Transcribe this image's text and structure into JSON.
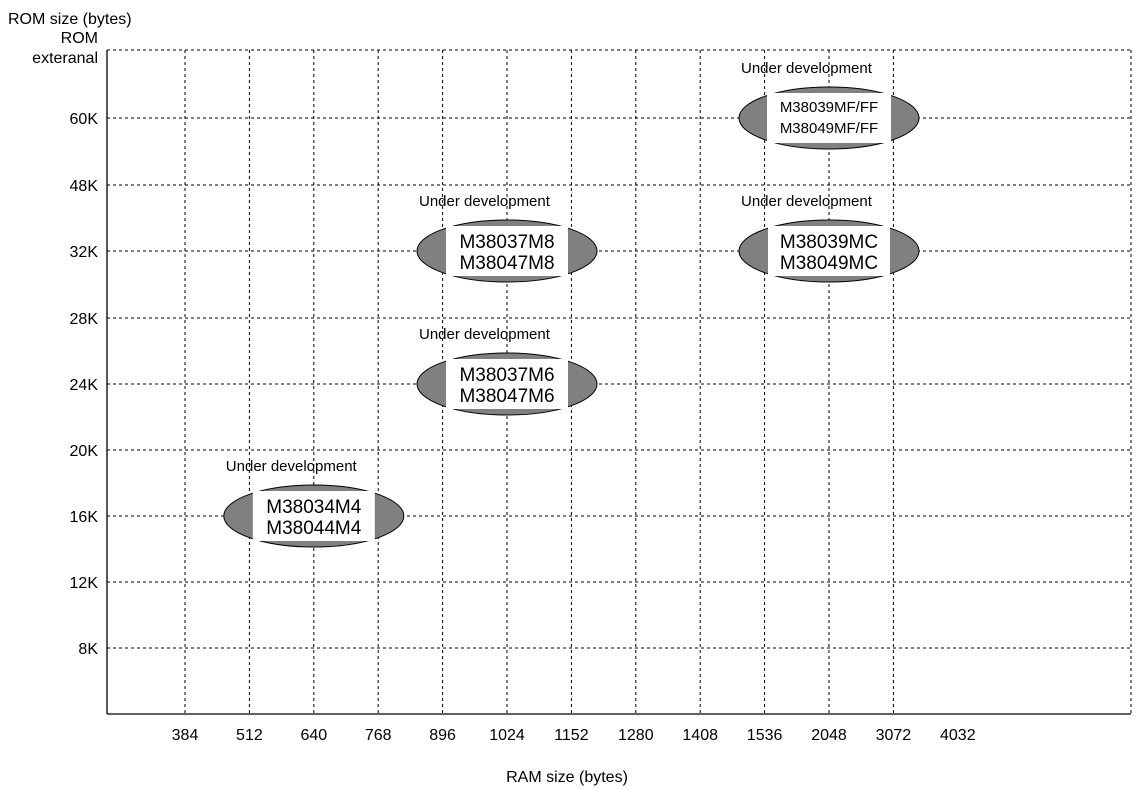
{
  "chart_data": {
    "type": "scatter",
    "title": "",
    "xlabel": "RAM size (bytes)",
    "ylabel": "ROM size (bytes)",
    "x_ticks": [
      "384",
      "512",
      "640",
      "768",
      "896",
      "1024",
      "1152",
      "1280",
      "1408",
      "1536",
      "2048",
      "3072",
      "4032"
    ],
    "y_ticks": [
      "8K",
      "12K",
      "16K",
      "20K",
      "24K",
      "28K",
      "32K",
      "48K",
      "60K",
      "ROM\nexteranal"
    ],
    "y_top_label": [
      "ROM",
      "exteranal"
    ],
    "grid": true,
    "points": [
      {
        "x": "640",
        "y": "16K",
        "lines": [
          "M38034M4",
          "M38044M4"
        ],
        "annotation": "Under development"
      },
      {
        "x": "1024",
        "y": "24K",
        "lines": [
          "M38037M6",
          "M38047M6"
        ],
        "annotation": "Under development"
      },
      {
        "x": "1024",
        "y": "32K",
        "lines": [
          "M38037M8",
          "M38047M8"
        ],
        "annotation": "Under development"
      },
      {
        "x": "2048",
        "y": "32K",
        "lines": [
          "M38039MC",
          "M38049MC"
        ],
        "annotation": "Under development"
      },
      {
        "x": "2048",
        "y": "60K",
        "lines": [
          "M38039MF/FF",
          "M38049MF/FF"
        ],
        "annotation": "Under development"
      }
    ],
    "colors": {
      "ellipse_fill": "#808080",
      "label_box": "#ffffff",
      "grid": "#000000"
    }
  }
}
